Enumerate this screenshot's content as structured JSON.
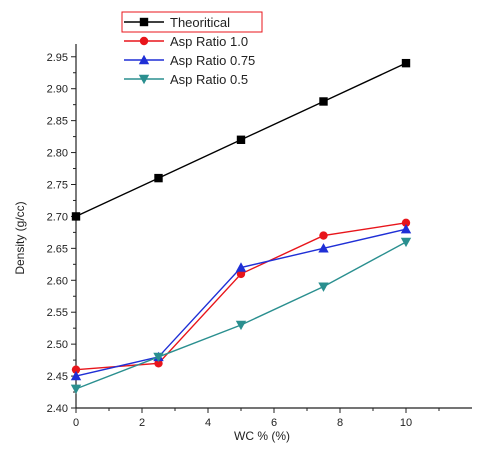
{
  "chart_data": {
    "type": "line",
    "title": "",
    "xlabel": "WC % (%)",
    "ylabel": "Density (g/cc)",
    "xlim": [
      0,
      12
    ],
    "ylim": [
      2.4,
      2.97
    ],
    "xticks": [
      0,
      2,
      4,
      6,
      8,
      10
    ],
    "yticks": [
      2.4,
      2.45,
      2.5,
      2.55,
      2.6,
      2.65,
      2.7,
      2.75,
      2.8,
      2.85,
      2.9,
      2.95
    ],
    "x": [
      0,
      2.5,
      5,
      7.5,
      10
    ],
    "legend_position": "top-left",
    "grid": false,
    "series": [
      {
        "name": "Theoritical",
        "color": "#000000",
        "marker": "square",
        "values": [
          2.7,
          2.76,
          2.82,
          2.88,
          2.94
        ]
      },
      {
        "name": "Asp Ratio 1.0",
        "color": "#e8151b",
        "marker": "circle",
        "values": [
          2.46,
          2.47,
          2.61,
          2.67,
          2.69
        ]
      },
      {
        "name": "Asp Ratio 0.75",
        "color": "#1f2fd6",
        "marker": "triangle-up",
        "values": [
          2.45,
          2.48,
          2.62,
          2.65,
          2.68
        ]
      },
      {
        "name": "Asp Ratio 0.5",
        "color": "#2a8f8f",
        "marker": "triangle-down",
        "values": [
          2.43,
          2.48,
          2.53,
          2.59,
          2.66
        ]
      }
    ]
  }
}
